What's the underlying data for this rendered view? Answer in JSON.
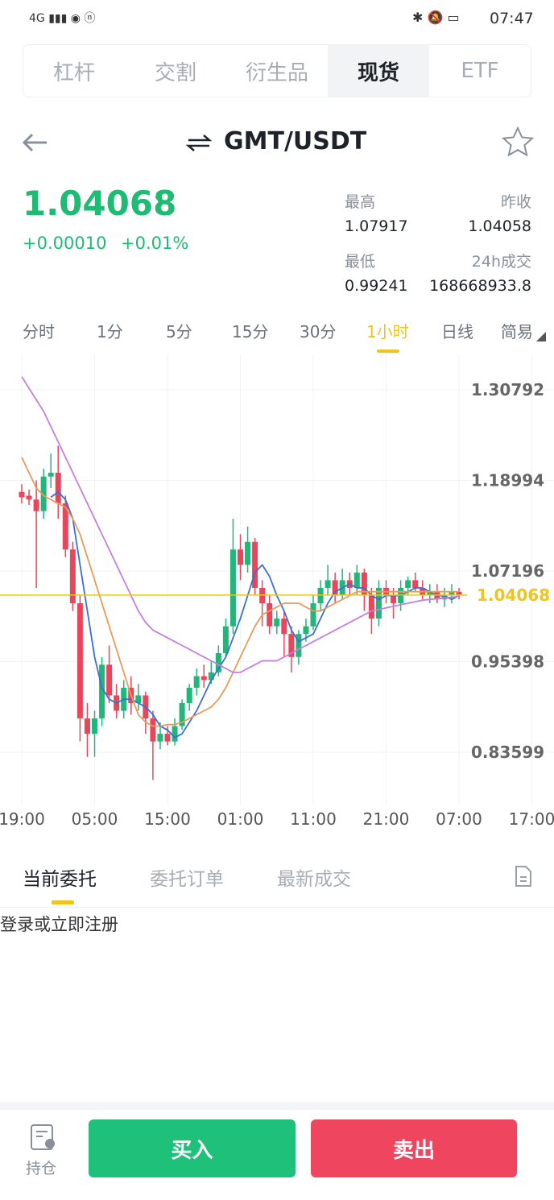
{
  "status_bar": {
    "time": "07:47"
  },
  "tabs": [
    "杠杆",
    "交割",
    "衍生品",
    "现货",
    "ETF"
  ],
  "pair": "GMT/USDT",
  "ticker": {
    "price": 1.04068,
    "change": "+0.00010",
    "change_pct": "+0.01%",
    "stats": [
      {
        "label": "最高",
        "value": 1.07917
      },
      {
        "label": "昨收",
        "value": 1.04058
      },
      {
        "label": "最低",
        "value": 0.99241
      },
      {
        "label": "24h成交",
        "value": 168668933.8
      }
    ]
  },
  "intervals": [
    "分时",
    "1分",
    "5分",
    "15分",
    "30分",
    "1小时",
    "日线",
    "简易"
  ],
  "chart_data": {
    "type": "candlestick",
    "up_color": "#21b67a",
    "down_color": "#e8465b",
    "price_line_color": "#f0c419",
    "grid": true,
    "x_labels": [
      "19:00",
      "05:00",
      "15:00",
      "01:00",
      "11:00",
      "21:00",
      "07:00",
      "17:00"
    ],
    "open": [
      1.175,
      1.17,
      1.165,
      1.15,
      1.195,
      1.2,
      1.16,
      1.1,
      1.03,
      0.88,
      0.86,
      0.88,
      0.95,
      0.91,
      0.89,
      0.92,
      0.9,
      0.91,
      0.88,
      0.85,
      0.86,
      0.85,
      0.87,
      0.9,
      0.92,
      0.935,
      0.93,
      0.94,
      0.965,
      1.0,
      1.1,
      1.08,
      1.11,
      1.05,
      1.03,
      1.0,
      1.01,
      0.99,
      0.96,
      0.99,
      1.0,
      1.03,
      1.05,
      1.06,
      1.04,
      1.06,
      1.05,
      1.07,
      1.04,
      1.01,
      1.05,
      1.04,
      1.03,
      1.05,
      1.06,
      1.05,
      1.04,
      1.045,
      1.035,
      1.04,
      1.045
    ],
    "high": [
      1.185,
      1.178,
      1.19,
      1.205,
      1.225,
      1.235,
      1.17,
      1.11,
      1.04,
      0.9,
      0.89,
      0.96,
      0.975,
      0.925,
      0.93,
      0.935,
      0.925,
      0.915,
      0.89,
      0.875,
      0.87,
      0.88,
      0.905,
      0.925,
      0.945,
      0.95,
      0.955,
      0.975,
      1.01,
      1.14,
      1.12,
      1.13,
      1.115,
      1.06,
      1.04,
      1.02,
      1.02,
      1.0,
      0.995,
      1.01,
      1.04,
      1.06,
      1.08,
      1.07,
      1.075,
      1.07,
      1.08,
      1.075,
      1.05,
      1.06,
      1.06,
      1.05,
      1.06,
      1.065,
      1.07,
      1.06,
      1.055,
      1.055,
      1.05,
      1.055,
      1.05
    ],
    "low": [
      1.16,
      1.158,
      1.05,
      1.14,
      1.18,
      1.14,
      1.09,
      1.02,
      0.85,
      0.83,
      0.83,
      0.87,
      0.9,
      0.88,
      0.88,
      0.885,
      0.89,
      0.86,
      0.8,
      0.84,
      0.845,
      0.845,
      0.865,
      0.89,
      0.91,
      0.92,
      0.925,
      0.935,
      0.96,
      0.99,
      1.06,
      1.07,
      1.04,
      1.0,
      0.99,
      0.99,
      0.96,
      0.94,
      0.95,
      0.98,
      0.995,
      1.02,
      1.04,
      1.03,
      1.035,
      1.04,
      1.04,
      1.02,
      0.99,
      1.0,
      1.03,
      1.01,
      1.02,
      1.04,
      1.045,
      1.035,
      1.03,
      1.03,
      1.025,
      1.03,
      1.035
    ],
    "close": [
      1.168,
      1.165,
      1.15,
      1.195,
      1.2,
      1.16,
      1.1,
      1.03,
      0.88,
      0.86,
      0.88,
      0.95,
      0.91,
      0.89,
      0.92,
      0.9,
      0.91,
      0.88,
      0.85,
      0.86,
      0.85,
      0.87,
      0.9,
      0.92,
      0.935,
      0.93,
      0.94,
      0.965,
      1.0,
      1.1,
      1.08,
      1.11,
      1.05,
      1.03,
      1.0,
      1.01,
      0.99,
      0.96,
      0.99,
      1.0,
      1.03,
      1.05,
      1.06,
      1.04,
      1.06,
      1.05,
      1.07,
      1.04,
      1.01,
      1.05,
      1.04,
      1.03,
      1.05,
      1.06,
      1.05,
      1.04,
      1.045,
      1.035,
      1.04,
      1.045,
      1.041
    ],
    "series": [
      {
        "color": "#3b6fd0",
        "values": [
          null,
          null,
          null,
          null,
          1.168,
          1.175,
          1.165,
          1.14,
          1.08,
          1.02,
          0.96,
          0.92,
          0.905,
          0.9,
          0.905,
          0.905,
          0.9,
          0.895,
          0.885,
          0.87,
          0.865,
          0.855,
          0.86,
          0.875,
          0.89,
          0.91,
          0.93,
          0.945,
          0.96,
          0.985,
          1.01,
          1.04,
          1.07,
          1.08,
          1.065,
          1.04,
          1.02,
          0.995,
          0.98,
          0.985,
          0.99,
          1.01,
          1.03,
          1.045,
          1.05,
          1.055,
          1.05,
          1.05,
          1.04,
          1.035,
          1.04,
          1.04,
          1.04,
          1.045,
          1.05,
          1.05,
          1.045,
          1.04,
          1.04,
          1.035,
          1.04
        ]
      },
      {
        "color": "#e99a5a",
        "values": [
          1.22,
          1.2,
          1.18,
          1.17,
          1.165,
          1.16,
          1.155,
          1.14,
          1.12,
          1.09,
          1.06,
          1.03,
          1.0,
          0.97,
          0.94,
          0.91,
          0.885,
          0.875,
          0.87,
          0.87,
          0.872,
          0.872,
          0.875,
          0.88,
          0.885,
          0.89,
          0.895,
          0.905,
          0.92,
          0.94,
          0.96,
          0.98,
          1.0,
          1.015,
          1.02,
          1.025,
          1.03,
          1.03,
          1.03,
          1.025,
          1.02,
          1.02,
          1.025,
          1.03,
          1.035,
          1.04,
          1.045,
          1.045,
          1.045,
          1.045,
          1.045,
          1.045,
          1.045,
          1.045,
          1.045,
          1.045,
          1.045,
          1.045,
          1.045,
          1.045,
          1.045
        ]
      },
      {
        "color": "#c77fdc",
        "values": [
          1.325,
          1.31,
          1.295,
          1.28,
          1.26,
          1.24,
          1.22,
          1.2,
          1.18,
          1.16,
          1.14,
          1.12,
          1.1,
          1.08,
          1.06,
          1.04,
          1.02,
          1.005,
          0.995,
          0.99,
          0.985,
          0.98,
          0.975,
          0.97,
          0.965,
          0.96,
          0.955,
          0.95,
          0.945,
          0.94,
          0.94,
          0.945,
          0.95,
          0.955,
          0.955,
          0.955,
          0.96,
          0.965,
          0.97,
          0.975,
          0.98,
          0.985,
          0.99,
          0.995,
          1.0,
          1.005,
          1.01,
          1.015,
          1.02,
          1.022,
          1.024,
          1.026,
          1.028,
          1.03,
          1.032,
          1.034,
          1.035,
          1.036,
          1.037,
          1.038,
          1.039
        ]
      }
    ],
    "ylim": [
      0.7668,
      1.3541
    ],
    "yticks": [
      1.30792,
      1.18994,
      1.07196,
      0.95398,
      0.83599
    ]
  },
  "orders": {
    "tabs": [
      "当前委托",
      "委托订单",
      "最新成交"
    ],
    "empty": "登录或立即注册"
  },
  "footer": {
    "holdings": "持仓",
    "buy": "买入",
    "sell": "卖出"
  }
}
